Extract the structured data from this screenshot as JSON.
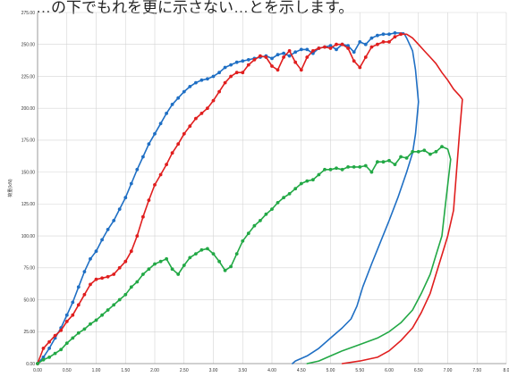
{
  "header": {
    "text": "…の下でもれを更に示さない…とを示します。"
  },
  "chart_data": {
    "type": "line",
    "title": "",
    "xlabel": "",
    "ylabel": "荷重(kN)",
    "xlim": [
      0,
      8.0
    ],
    "ylim": [
      0,
      275
    ],
    "grid": true,
    "x_ticks": [
      "0.00",
      "0.50",
      "1.00",
      "1.50",
      "2.00",
      "2.50",
      "3.00",
      "3.50",
      "4.00",
      "4.50",
      "5.00",
      "5.50",
      "6.00",
      "6.50",
      "7.00",
      "7.50",
      "8.0"
    ],
    "y_ticks": [
      "0.00",
      "25.00",
      "50.00",
      "75.00",
      "100.00",
      "125.00",
      "150.00",
      "175.00",
      "200.00",
      "225.00",
      "250.00",
      "275.00"
    ],
    "series": [
      {
        "color": "#1f6fc4",
        "points": [
          [
            0,
            0
          ],
          [
            0.1,
            5
          ],
          [
            0.2,
            12
          ],
          [
            0.3,
            20
          ],
          [
            0.4,
            28
          ],
          [
            0.5,
            38
          ],
          [
            0.6,
            48
          ],
          [
            0.7,
            60
          ],
          [
            0.8,
            72
          ],
          [
            0.9,
            82
          ],
          [
            1.0,
            88
          ],
          [
            1.1,
            97
          ],
          [
            1.2,
            105
          ],
          [
            1.3,
            112
          ],
          [
            1.4,
            121
          ],
          [
            1.5,
            130
          ],
          [
            1.6,
            141
          ],
          [
            1.7,
            152
          ],
          [
            1.8,
            162
          ],
          [
            1.9,
            172
          ],
          [
            2.0,
            180
          ],
          [
            2.1,
            188
          ],
          [
            2.2,
            196
          ],
          [
            2.3,
            203
          ],
          [
            2.4,
            208
          ],
          [
            2.5,
            213
          ],
          [
            2.6,
            217
          ],
          [
            2.7,
            220
          ],
          [
            2.8,
            222
          ],
          [
            2.9,
            223
          ],
          [
            3.0,
            225
          ],
          [
            3.1,
            228
          ],
          [
            3.2,
            232
          ],
          [
            3.3,
            234
          ],
          [
            3.4,
            236
          ],
          [
            3.5,
            237
          ],
          [
            3.6,
            238
          ],
          [
            3.7,
            239
          ],
          [
            3.8,
            240
          ],
          [
            3.9,
            241
          ],
          [
            4.0,
            239
          ],
          [
            4.1,
            242
          ],
          [
            4.2,
            243
          ],
          [
            4.3,
            241
          ],
          [
            4.4,
            244
          ],
          [
            4.5,
            246
          ],
          [
            4.6,
            246
          ],
          [
            4.7,
            243
          ],
          [
            4.8,
            247
          ],
          [
            4.9,
            248
          ],
          [
            5.0,
            249
          ],
          [
            5.1,
            246
          ],
          [
            5.2,
            250
          ],
          [
            5.3,
            249
          ],
          [
            5.4,
            244
          ],
          [
            5.5,
            252
          ],
          [
            5.6,
            250
          ],
          [
            5.7,
            255
          ],
          [
            5.8,
            257
          ],
          [
            5.9,
            258
          ],
          [
            6.0,
            258
          ],
          [
            6.1,
            259
          ],
          [
            6.2,
            259
          ],
          [
            6.25,
            259
          ],
          [
            6.3,
            255
          ],
          [
            6.35,
            250
          ],
          [
            6.4,
            245
          ],
          [
            6.45,
            230
          ],
          [
            6.5,
            205
          ],
          [
            6.45,
            180
          ],
          [
            6.4,
            165
          ],
          [
            6.3,
            150
          ],
          [
            6.15,
            130
          ],
          [
            6.0,
            112
          ],
          [
            5.85,
            95
          ],
          [
            5.7,
            78
          ],
          [
            5.55,
            60
          ],
          [
            5.45,
            45
          ],
          [
            5.35,
            35
          ],
          [
            5.2,
            28
          ],
          [
            5.0,
            20
          ],
          [
            4.8,
            12
          ],
          [
            4.6,
            6
          ],
          [
            4.4,
            2
          ],
          [
            4.35,
            0
          ]
        ]
      },
      {
        "color": "#e01e1e",
        "points": [
          [
            0,
            0
          ],
          [
            0.1,
            12
          ],
          [
            0.2,
            17
          ],
          [
            0.3,
            22
          ],
          [
            0.4,
            26
          ],
          [
            0.5,
            33
          ],
          [
            0.6,
            38
          ],
          [
            0.7,
            46
          ],
          [
            0.8,
            54
          ],
          [
            0.9,
            62
          ],
          [
            1.0,
            66
          ],
          [
            1.1,
            67
          ],
          [
            1.2,
            68
          ],
          [
            1.3,
            70
          ],
          [
            1.4,
            75
          ],
          [
            1.5,
            80
          ],
          [
            1.6,
            88
          ],
          [
            1.7,
            100
          ],
          [
            1.8,
            115
          ],
          [
            1.9,
            128
          ],
          [
            2.0,
            140
          ],
          [
            2.1,
            148
          ],
          [
            2.2,
            156
          ],
          [
            2.3,
            165
          ],
          [
            2.4,
            172
          ],
          [
            2.5,
            180
          ],
          [
            2.6,
            186
          ],
          [
            2.7,
            192
          ],
          [
            2.8,
            196
          ],
          [
            2.9,
            200
          ],
          [
            3.0,
            206
          ],
          [
            3.1,
            213
          ],
          [
            3.2,
            220
          ],
          [
            3.3,
            225
          ],
          [
            3.4,
            228
          ],
          [
            3.5,
            228
          ],
          [
            3.6,
            234
          ],
          [
            3.7,
            238
          ],
          [
            3.8,
            241
          ],
          [
            3.9,
            240
          ],
          [
            4.0,
            233
          ],
          [
            4.1,
            230
          ],
          [
            4.2,
            240
          ],
          [
            4.3,
            245
          ],
          [
            4.4,
            236
          ],
          [
            4.5,
            230
          ],
          [
            4.6,
            240
          ],
          [
            4.7,
            245
          ],
          [
            4.8,
            247
          ],
          [
            4.9,
            248
          ],
          [
            5.0,
            247
          ],
          [
            5.1,
            250
          ],
          [
            5.2,
            250
          ],
          [
            5.3,
            247
          ],
          [
            5.4,
            237
          ],
          [
            5.5,
            232
          ],
          [
            5.6,
            240
          ],
          [
            5.7,
            248
          ],
          [
            5.8,
            250
          ],
          [
            5.9,
            252
          ],
          [
            6.0,
            252
          ],
          [
            6.1,
            256
          ],
          [
            6.2,
            258
          ],
          [
            6.3,
            258
          ],
          [
            6.4,
            255
          ],
          [
            6.5,
            250
          ],
          [
            6.6,
            245
          ],
          [
            6.7,
            240
          ],
          [
            6.8,
            235
          ],
          [
            6.9,
            228
          ],
          [
            7.0,
            222
          ],
          [
            7.1,
            215
          ],
          [
            7.2,
            210
          ],
          [
            7.25,
            207
          ],
          [
            7.2,
            180
          ],
          [
            7.15,
            150
          ],
          [
            7.1,
            120
          ],
          [
            7.0,
            100
          ],
          [
            6.9,
            85
          ],
          [
            6.8,
            70
          ],
          [
            6.7,
            55
          ],
          [
            6.55,
            40
          ],
          [
            6.4,
            28
          ],
          [
            6.2,
            18
          ],
          [
            6.0,
            10
          ],
          [
            5.8,
            5
          ],
          [
            5.5,
            2
          ],
          [
            5.2,
            0
          ]
        ]
      },
      {
        "color": "#22a845",
        "points": [
          [
            0,
            0
          ],
          [
            0.1,
            3
          ],
          [
            0.2,
            5
          ],
          [
            0.3,
            8
          ],
          [
            0.4,
            11
          ],
          [
            0.5,
            16
          ],
          [
            0.6,
            20
          ],
          [
            0.7,
            24
          ],
          [
            0.8,
            27
          ],
          [
            0.9,
            31
          ],
          [
            1.0,
            34
          ],
          [
            1.1,
            38
          ],
          [
            1.2,
            42
          ],
          [
            1.3,
            46
          ],
          [
            1.4,
            50
          ],
          [
            1.5,
            54
          ],
          [
            1.6,
            60
          ],
          [
            1.7,
            64
          ],
          [
            1.8,
            70
          ],
          [
            1.9,
            74
          ],
          [
            2.0,
            78
          ],
          [
            2.1,
            80
          ],
          [
            2.2,
            82
          ],
          [
            2.3,
            74
          ],
          [
            2.4,
            70
          ],
          [
            2.5,
            77
          ],
          [
            2.6,
            83
          ],
          [
            2.7,
            86
          ],
          [
            2.8,
            89
          ],
          [
            2.9,
            90
          ],
          [
            3.0,
            86
          ],
          [
            3.1,
            80
          ],
          [
            3.2,
            73
          ],
          [
            3.3,
            76
          ],
          [
            3.4,
            86
          ],
          [
            3.5,
            96
          ],
          [
            3.6,
            102
          ],
          [
            3.7,
            108
          ],
          [
            3.8,
            112
          ],
          [
            3.9,
            117
          ],
          [
            4.0,
            121
          ],
          [
            4.1,
            126
          ],
          [
            4.2,
            130
          ],
          [
            4.3,
            133
          ],
          [
            4.4,
            137
          ],
          [
            4.5,
            141
          ],
          [
            4.6,
            143
          ],
          [
            4.7,
            144
          ],
          [
            4.8,
            148
          ],
          [
            4.9,
            152
          ],
          [
            5.0,
            152
          ],
          [
            5.1,
            153
          ],
          [
            5.2,
            152
          ],
          [
            5.3,
            154
          ],
          [
            5.4,
            154
          ],
          [
            5.5,
            154
          ],
          [
            5.6,
            155
          ],
          [
            5.7,
            150
          ],
          [
            5.8,
            158
          ],
          [
            5.9,
            158
          ],
          [
            6.0,
            159
          ],
          [
            6.1,
            156
          ],
          [
            6.2,
            162
          ],
          [
            6.3,
            161
          ],
          [
            6.4,
            166
          ],
          [
            6.5,
            166
          ],
          [
            6.6,
            167
          ],
          [
            6.7,
            164
          ],
          [
            6.8,
            166
          ],
          [
            6.9,
            170
          ],
          [
            7.0,
            168
          ],
          [
            7.05,
            160
          ],
          [
            7.0,
            140
          ],
          [
            6.95,
            120
          ],
          [
            6.9,
            100
          ],
          [
            6.8,
            85
          ],
          [
            6.7,
            70
          ],
          [
            6.55,
            55
          ],
          [
            6.4,
            42
          ],
          [
            6.2,
            32
          ],
          [
            6.0,
            25
          ],
          [
            5.8,
            20
          ],
          [
            5.5,
            15
          ],
          [
            5.2,
            10
          ],
          [
            5.0,
            6
          ],
          [
            4.8,
            2
          ],
          [
            4.6,
            0
          ]
        ]
      }
    ]
  }
}
